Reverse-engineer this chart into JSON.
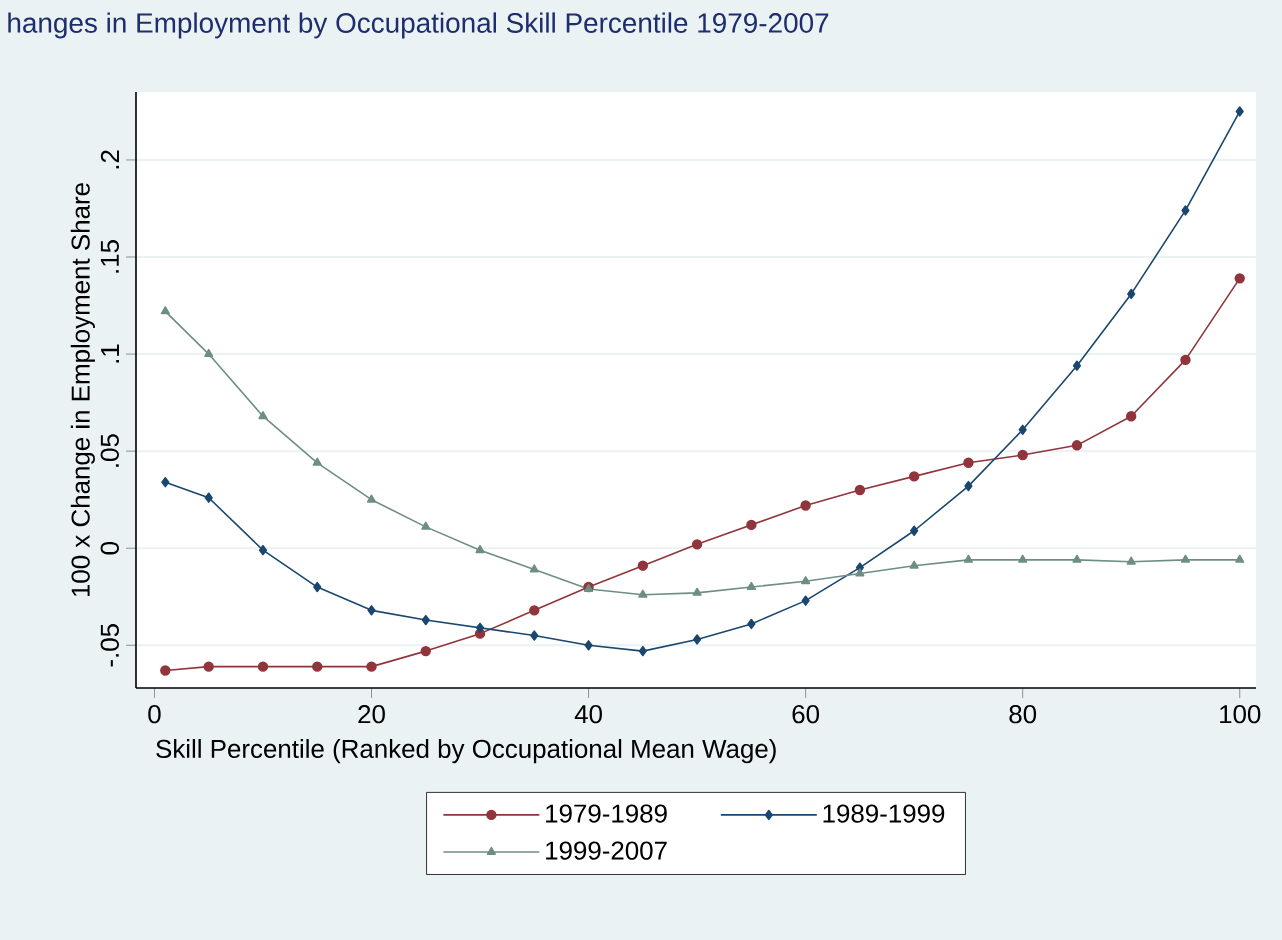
{
  "chart_data": {
    "type": "line",
    "title": "hanges in Employment by Occupational Skill Percentile 1979-2007",
    "xlabel": "Skill Percentile (Ranked by Occupational Mean Wage)",
    "ylabel": "100 x Change in Employment Share",
    "x": [
      1,
      5,
      10,
      15,
      20,
      25,
      30,
      35,
      40,
      45,
      50,
      55,
      60,
      65,
      70,
      75,
      80,
      85,
      90,
      95,
      100
    ],
    "series": [
      {
        "name": "1979-1989",
        "color": "#90353b",
        "marker": "circle",
        "values": [
          -0.063,
          -0.061,
          -0.061,
          -0.061,
          -0.061,
          -0.053,
          -0.044,
          -0.032,
          -0.02,
          -0.009,
          0.002,
          0.012,
          0.022,
          0.03,
          0.037,
          0.044,
          0.048,
          0.053,
          0.068,
          0.097,
          0.139
        ]
      },
      {
        "name": "1989-1999",
        "color": "#1a476f",
        "marker": "diamond",
        "values": [
          0.034,
          0.026,
          -0.001,
          -0.02,
          -0.032,
          -0.037,
          -0.041,
          -0.045,
          -0.05,
          -0.053,
          -0.047,
          -0.039,
          -0.027,
          -0.01,
          0.009,
          0.032,
          0.061,
          0.094,
          0.131,
          0.174,
          0.225
        ]
      },
      {
        "name": "1999-2007",
        "color": "#6e8e84",
        "marker": "triangle",
        "values": [
          0.122,
          0.1,
          0.068,
          0.044,
          0.025,
          0.011,
          -0.001,
          -0.011,
          -0.021,
          -0.024,
          -0.023,
          -0.02,
          -0.017,
          -0.013,
          -0.009,
          -0.006,
          -0.006,
          -0.006,
          -0.007,
          -0.006,
          -0.006
        ]
      }
    ],
    "xlim": [
      -1.7,
      101.5
    ],
    "ylim": [
      -0.072,
      0.235
    ],
    "xticks": [
      0,
      20,
      40,
      60,
      80,
      100
    ],
    "yticks": [
      {
        "value": -0.05,
        "label": "-.05"
      },
      {
        "value": 0,
        "label": "0"
      },
      {
        "value": 0.05,
        "label": ".05"
      },
      {
        "value": 0.1,
        "label": ".1"
      },
      {
        "value": 0.15,
        "label": ".15"
      },
      {
        "value": 0.2,
        "label": ".2"
      }
    ],
    "grid": "y",
    "legend": "bottom"
  }
}
